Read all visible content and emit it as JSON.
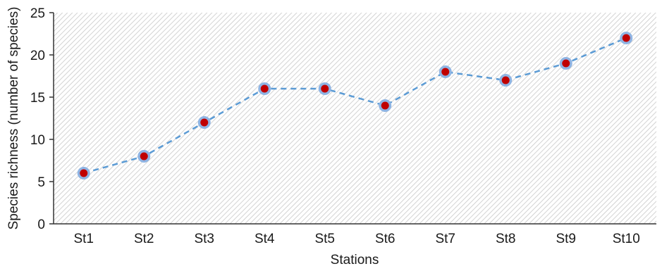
{
  "chart_data": {
    "type": "line",
    "xlabel": "Stations",
    "ylabel": "Species richness (number of species)",
    "categories": [
      "St1",
      "St2",
      "St3",
      "St4",
      "St5",
      "St6",
      "St7",
      "St8",
      "St9",
      "St10"
    ],
    "series": [
      {
        "values": [
          6,
          8,
          12,
          16,
          16,
          14,
          18,
          17,
          19,
          22
        ]
      }
    ],
    "ylim": [
      0,
      25
    ],
    "yticks": [
      0,
      5,
      10,
      15,
      20,
      25
    ],
    "grid": false,
    "line_style": "dashed",
    "colors": {
      "line": "#5b9bd5",
      "marker_outer": "#8fb4e3",
      "marker_inner": "#c00000",
      "hatch": "#c8c8c8"
    }
  }
}
